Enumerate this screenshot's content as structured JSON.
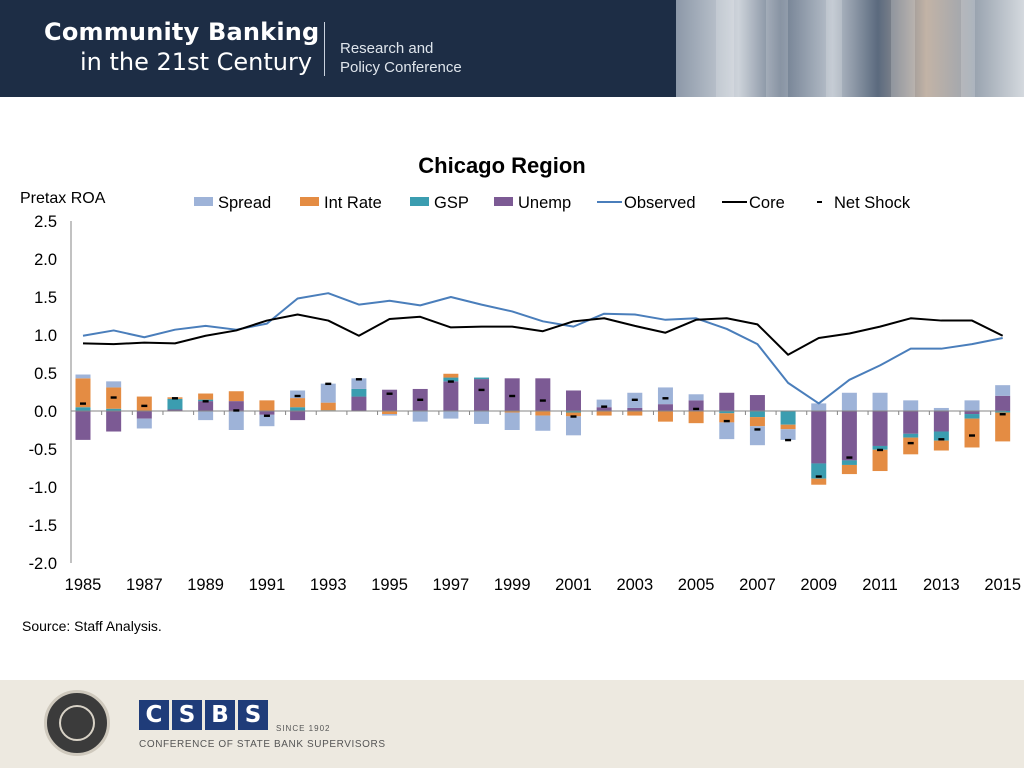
{
  "header": {
    "title_line1": "Community Banking",
    "title_line2": "in the 21st Century",
    "subtitle_line1": "Research and",
    "subtitle_line2": "Policy Conference"
  },
  "footer": {
    "csbs_letters": [
      "C",
      "S",
      "B",
      "S"
    ],
    "since": "SINCE 1902",
    "csbs_full": "CONFERENCE OF STATE BANK SUPERVISORS",
    "seal_name": "federal-reserve-seal-icon"
  },
  "source_note": "Source: Staff Analysis.",
  "colors": {
    "banner": "#1d2d45",
    "spread": "#9eb3d8",
    "int_rate": "#e48c43",
    "gsp": "#3b9db0",
    "unemp": "#7c5a94",
    "observed": "#4a7ebb",
    "core": "#000000",
    "net_shock": "#000000"
  },
  "chart_data": {
    "type": "bar",
    "title": "Chicago Region",
    "ylabel": "Pretax ROA",
    "xlabel": "",
    "ylim": [
      -2.0,
      2.5
    ],
    "yticks": [
      2.5,
      2.0,
      1.5,
      1.0,
      0.5,
      0.0,
      -0.5,
      -1.0,
      -1.5,
      -2.0
    ],
    "ytick_labels": [
      "2.5",
      "2.0",
      "1.5",
      "1.0",
      "0.5",
      "0.0",
      "-0.5",
      "-1.0",
      "-1.5",
      "-2.0"
    ],
    "x_tick_labels": [
      "1985",
      "1987",
      "1989",
      "1991",
      "1993",
      "1995",
      "1997",
      "1999",
      "2001",
      "2003",
      "2005",
      "2007",
      "2009",
      "2011",
      "2013",
      "2015"
    ],
    "legend": [
      "Spread",
      "Int Rate",
      "GSP",
      "Unemp",
      "Observed",
      "Core",
      "Net Shock"
    ],
    "categories": [
      1985,
      1986,
      1987,
      1988,
      1989,
      1990,
      1991,
      1992,
      1993,
      1994,
      1995,
      1996,
      1997,
      1998,
      1999,
      2000,
      2001,
      2002,
      2003,
      2004,
      2005,
      2006,
      2007,
      2008,
      2009,
      2010,
      2011,
      2012,
      2013,
      2014,
      2015
    ],
    "series": [
      {
        "name": "Spread",
        "values": [
          0.05,
          0.08,
          -0.13,
          0.0,
          -0.12,
          -0.25,
          -0.15,
          0.1,
          0.25,
          0.14,
          -0.02,
          -0.14,
          -0.1,
          -0.17,
          -0.23,
          -0.2,
          -0.25,
          0.1,
          0.2,
          0.22,
          0.08,
          -0.22,
          -0.25,
          -0.14,
          0.1,
          0.24,
          0.24,
          0.14,
          0.04,
          0.14,
          0.14
        ]
      },
      {
        "name": "Int Rate",
        "values": [
          0.38,
          0.28,
          0.19,
          0.02,
          0.08,
          0.13,
          0.14,
          0.12,
          0.1,
          0.0,
          -0.04,
          0.0,
          0.05,
          0.0,
          -0.02,
          -0.06,
          -0.05,
          -0.06,
          -0.06,
          -0.14,
          -0.16,
          -0.12,
          -0.12,
          -0.06,
          -0.08,
          -0.12,
          -0.28,
          -0.22,
          -0.13,
          -0.38,
          -0.38
        ]
      },
      {
        "name": "GSP",
        "values": [
          0.05,
          0.03,
          0.0,
          0.14,
          0.02,
          0.0,
          0.0,
          0.05,
          0.01,
          0.1,
          0.0,
          0.0,
          0.05,
          0.02,
          0.0,
          0.0,
          -0.02,
          0.0,
          0.0,
          0.0,
          0.0,
          -0.03,
          -0.08,
          -0.18,
          -0.2,
          -0.06,
          -0.05,
          -0.05,
          -0.12,
          -0.06,
          -0.02
        ]
      },
      {
        "name": "Unemp",
        "values": [
          -0.38,
          -0.27,
          -0.1,
          0.02,
          0.13,
          0.13,
          -0.05,
          -0.12,
          0.0,
          0.19,
          0.28,
          0.29,
          0.39,
          0.42,
          0.43,
          0.43,
          0.27,
          0.05,
          0.04,
          0.09,
          0.14,
          0.24,
          0.21,
          0.0,
          -0.69,
          -0.65,
          -0.46,
          -0.3,
          -0.27,
          -0.04,
          0.2
        ]
      },
      {
        "name": "Observed",
        "values": [
          0.99,
          1.06,
          0.97,
          1.07,
          1.12,
          1.07,
          1.15,
          1.48,
          1.55,
          1.4,
          1.45,
          1.39,
          1.5,
          1.4,
          1.31,
          1.18,
          1.11,
          1.28,
          1.27,
          1.2,
          1.22,
          1.08,
          0.88,
          0.37,
          0.1,
          0.41,
          0.6,
          0.82,
          0.82,
          0.88,
          0.96
        ]
      },
      {
        "name": "Core",
        "values": [
          0.89,
          0.88,
          0.9,
          0.89,
          0.99,
          1.06,
          1.19,
          1.27,
          1.19,
          0.99,
          1.21,
          1.24,
          1.1,
          1.11,
          1.11,
          1.05,
          1.18,
          1.22,
          1.12,
          1.03,
          1.2,
          1.22,
          1.14,
          0.74,
          0.96,
          1.02,
          1.11,
          1.22,
          1.19,
          1.19,
          0.99
        ]
      },
      {
        "name": "Net Shock",
        "values": [
          0.1,
          0.18,
          0.07,
          0.17,
          0.13,
          0.01,
          -0.06,
          0.2,
          0.36,
          0.42,
          0.23,
          0.15,
          0.39,
          0.28,
          0.2,
          0.14,
          -0.07,
          0.06,
          0.15,
          0.17,
          0.03,
          -0.13,
          -0.24,
          -0.38,
          -0.86,
          -0.61,
          -0.51,
          -0.42,
          -0.37,
          -0.32,
          -0.04
        ]
      }
    ]
  }
}
